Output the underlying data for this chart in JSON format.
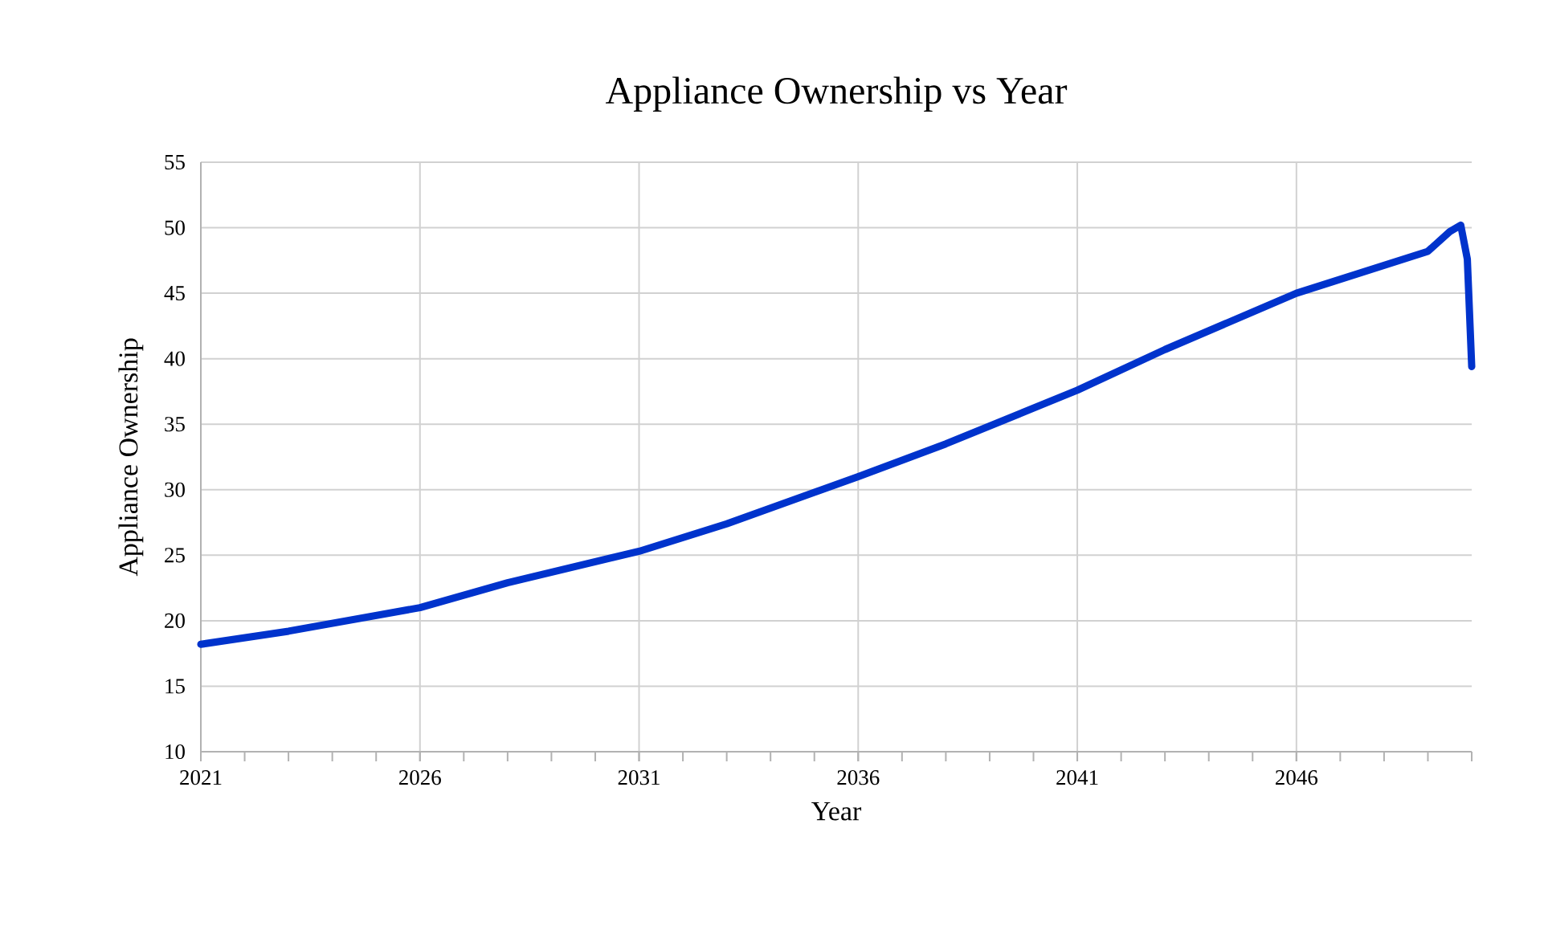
{
  "chart_data": {
    "type": "line",
    "title": "Appliance Ownership vs Year",
    "xlabel": "Year",
    "ylabel": "Appliance Ownership",
    "x": [
      2021,
      2023,
      2026,
      2028,
      2031,
      2033,
      2036,
      2038,
      2041,
      2043,
      2046,
      2049,
      2049.5,
      2049.75,
      2049.9,
      2050
    ],
    "series": [
      {
        "color": "#0033cc",
        "values": [
          18.2,
          19.2,
          21.0,
          22.9,
          25.3,
          27.4,
          31.0,
          33.5,
          37.6,
          40.7,
          45.0,
          48.2,
          49.7,
          50.2,
          47.6,
          39.4
        ]
      }
    ],
    "xlim": [
      2021,
      2050
    ],
    "xticks": [
      2021,
      2026,
      2031,
      2036,
      2041,
      2046
    ],
    "ylim": [
      10,
      55
    ],
    "yticks": [
      10,
      15,
      20,
      25,
      30,
      35,
      40,
      45,
      50,
      55
    ],
    "grid": true,
    "legend": false,
    "marker": "none",
    "line_style": "solid"
  }
}
